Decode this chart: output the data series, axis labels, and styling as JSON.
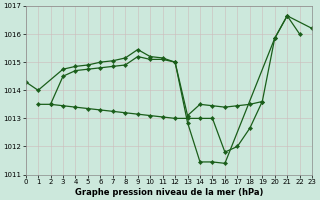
{
  "xlabel": "Graphe pression niveau de la mer (hPa)",
  "bg_color": "#cce8dc",
  "grid_color": "#b0c8bc",
  "line_color": "#1a5e1a",
  "ylim": [
    1011,
    1017
  ],
  "xlim": [
    0,
    23
  ],
  "yticks": [
    1011,
    1012,
    1013,
    1014,
    1015,
    1016,
    1017
  ],
  "xticks": [
    0,
    1,
    2,
    3,
    4,
    5,
    6,
    7,
    8,
    9,
    10,
    11,
    12,
    13,
    14,
    15,
    16,
    17,
    18,
    19,
    20,
    21,
    22,
    23
  ],
  "line1_x": [
    0,
    1,
    3,
    4,
    5,
    6,
    7,
    8,
    9,
    10,
    11,
    12,
    13,
    14,
    15,
    16,
    20,
    21,
    23
  ],
  "line1_y": [
    1014.3,
    1014.0,
    1014.75,
    1014.85,
    1014.9,
    1015.0,
    1015.05,
    1015.15,
    1015.45,
    1015.2,
    1015.15,
    1015.0,
    1012.85,
    1011.45,
    1011.45,
    1011.4,
    1015.85,
    1016.65,
    1016.2
  ],
  "line2_x": [
    2,
    3,
    4,
    5,
    6,
    7,
    8,
    9,
    10,
    11,
    12,
    13,
    14,
    15,
    16,
    17,
    18,
    19,
    20,
    21,
    22
  ],
  "line2_y": [
    1013.5,
    1014.5,
    1014.7,
    1014.75,
    1014.8,
    1014.85,
    1014.9,
    1015.2,
    1015.1,
    1015.1,
    1015.0,
    1013.1,
    1013.5,
    1013.45,
    1013.4,
    1013.45,
    1013.5,
    1013.6,
    1015.85,
    1016.65,
    1016.0
  ],
  "line3_x": [
    1,
    2,
    3,
    4,
    5,
    6,
    7,
    8,
    9,
    10,
    11,
    12,
    13,
    14,
    15,
    16,
    17,
    18,
    19
  ],
  "line3_y": [
    1013.5,
    1013.5,
    1013.45,
    1013.4,
    1013.35,
    1013.3,
    1013.25,
    1013.2,
    1013.15,
    1013.1,
    1013.05,
    1013.0,
    1013.0,
    1013.0,
    1013.0,
    1011.8,
    1012.0,
    1012.65,
    1013.6
  ],
  "tick_fontsize": 5.0,
  "label_fontsize": 6.0
}
